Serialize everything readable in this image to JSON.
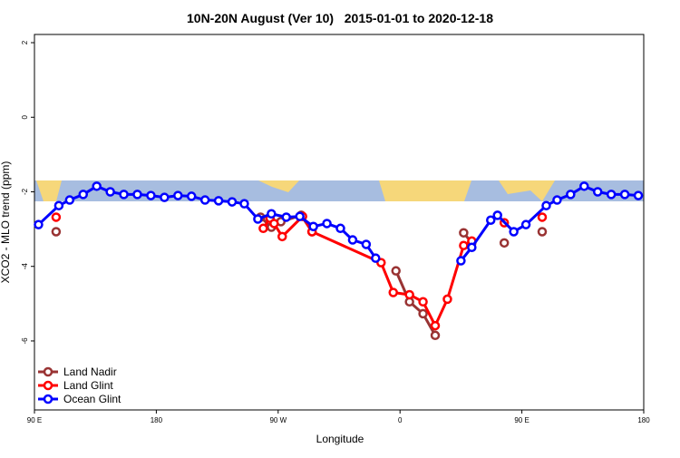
{
  "chart_data": {
    "type": "line",
    "title": "10N-20N August (Ver 10)   2015-01-01 to 2020-12-18",
    "x_label": "Longitude",
    "y_label": "XCO2 - MLO trend (ppm)",
    "xlim": [
      90,
      540
    ],
    "ylim": [
      -7.85,
      2.22
    ],
    "xticks": [
      {
        "value": 90,
        "label": "90 E"
      },
      180,
      {
        "value": 270,
        "label": "90 W"
      },
      {
        "value": 360,
        "label": "0"
      },
      {
        "value": 450,
        "label": "90 E"
      },
      {
        "value": 540,
        "label": "180"
      }
    ],
    "yticks": [
      2,
      0,
      -2,
      -4,
      -6
    ],
    "legend": "bottom-left",
    "series": [
      {
        "name": "Land Nadir",
        "color": "#993333",
        "x": [
          106,
          null,
          257,
          265,
          272,
          287,
          295,
          null,
          357,
          367,
          377,
          386,
          null,
          407,
          413,
          null,
          437,
          null,
          465
        ],
        "values": [
          -3.07,
          null,
          -2.68,
          -2.95,
          -2.8,
          -2.63,
          -3.07,
          null,
          -4.12,
          -4.95,
          -5.27,
          -5.85,
          null,
          -3.1,
          -3.37,
          null,
          -3.37,
          null,
          -3.07
        ]
      },
      {
        "name": "Land Glint",
        "color": "#ff0000",
        "x": [
          106,
          null,
          259,
          264,
          267,
          273,
          288,
          295,
          346,
          355,
          367,
          377,
          386,
          395,
          407,
          413,
          null,
          437,
          null,
          465
        ],
        "values": [
          -2.68,
          null,
          -2.98,
          -2.71,
          -2.85,
          -3.2,
          -2.66,
          -3.07,
          -3.9,
          -4.7,
          -4.76,
          -4.95,
          -5.59,
          -4.88,
          -3.44,
          -3.32,
          null,
          -2.83,
          null,
          -2.68
        ]
      },
      {
        "name": "Ocean Glint",
        "color": "#0000ff",
        "x": [
          93,
          108,
          116,
          126,
          136,
          146,
          156,
          166,
          176,
          186,
          196,
          206,
          216,
          226,
          236,
          245,
          255,
          265,
          276,
          286,
          296,
          306,
          316,
          325,
          335,
          342,
          null,
          405,
          413,
          427,
          432,
          444,
          453,
          468,
          476,
          486,
          496,
          506,
          516,
          526,
          536
        ],
        "values": [
          -2.88,
          -2.37,
          -2.22,
          -2.07,
          -1.85,
          -2.0,
          -2.07,
          -2.07,
          -2.1,
          -2.15,
          -2.1,
          -2.12,
          -2.22,
          -2.24,
          -2.27,
          -2.32,
          -2.73,
          -2.59,
          -2.68,
          -2.66,
          -2.93,
          -2.85,
          -2.98,
          -3.29,
          -3.41,
          -3.78,
          null,
          -3.85,
          -3.49,
          -2.76,
          -2.63,
          -3.07,
          -2.88,
          -2.37,
          -2.22,
          -2.07,
          -1.85,
          -2.0,
          -2.07,
          -2.07,
          -2.1
        ]
      }
    ]
  }
}
